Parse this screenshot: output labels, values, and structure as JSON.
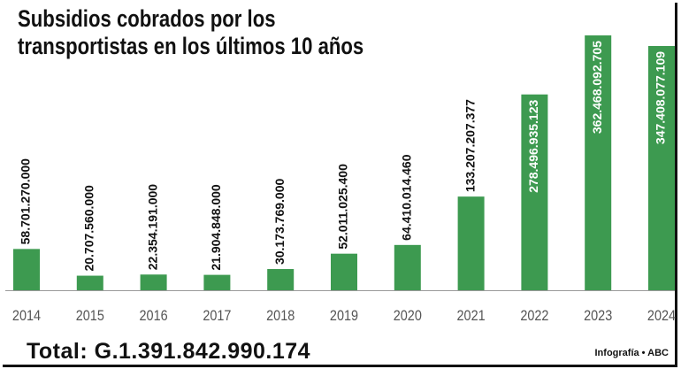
{
  "title_lines": [
    "Subsidios cobrados por los",
    "transportistas en los últimos 10 años"
  ],
  "total_text": "Total: G.1.391.842.990.174",
  "credit_text": "Infografía • ABC",
  "colors": {
    "bar": "#3d9a50",
    "baseline": "#9a9a9a",
    "label_dark": "#111111",
    "label_light": "#ffffff",
    "tick": "#555555"
  },
  "chart_data": {
    "type": "bar",
    "title": "Subsidios cobrados por los transportistas en los últimos 10 años",
    "categories": [
      "2014",
      "2015",
      "2016",
      "2017",
      "2018",
      "2019",
      "2020",
      "2021",
      "2022",
      "2023",
      "2024"
    ],
    "values": [
      58701270000,
      20707560000,
      22354191000,
      21904848000,
      30173769000,
      52011025400,
      64410014460,
      133207207377,
      278496935123,
      362468092705,
      347408077109
    ],
    "value_labels": [
      "58.701.270.000",
      "20.707.560.000",
      "22.354.191.000",
      "21.904.848.000",
      "30.173.769.000",
      "52.011.025.400",
      "64.410.014.460",
      "133.207.207.377",
      "278.496.935.123",
      "362.468.092.705",
      "347.408.077.109"
    ],
    "labels_inside": [
      false,
      false,
      false,
      false,
      false,
      false,
      false,
      false,
      true,
      true,
      true
    ],
    "xlabel": "",
    "ylabel": "",
    "ylim": [
      0,
      362468092705
    ],
    "grid": false,
    "legend": "none"
  }
}
